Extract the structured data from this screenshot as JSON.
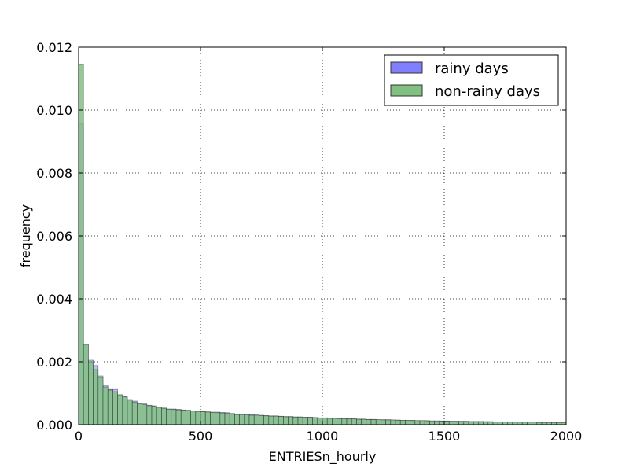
{
  "chart_data": {
    "type": "histogram",
    "title": "",
    "xlabel": "ENTRIESn_hourly",
    "ylabel": "frequency",
    "xlim": [
      0,
      2000
    ],
    "ylim": [
      0,
      0.012
    ],
    "xticks": [
      0,
      500,
      1000,
      1500,
      2000
    ],
    "xtick_labels": [
      "0",
      "500",
      "1000",
      "1500",
      "2000"
    ],
    "yticks": [
      0,
      0.002,
      0.004,
      0.006,
      0.008,
      0.01,
      0.012
    ],
    "ytick_labels": [
      "0.000",
      "0.002",
      "0.004",
      "0.006",
      "0.008",
      "0.010",
      "0.012"
    ],
    "grid": true,
    "legend_position": "top-right",
    "bin_width": 20,
    "series": [
      {
        "name": "rainy days",
        "color": "#8080ff",
        "values": [
          0.00957,
          0.00255,
          0.00205,
          0.00188,
          0.00155,
          0.00125,
          0.00112,
          0.00112,
          0.00095,
          0.0009,
          0.0008,
          0.00075,
          0.00068,
          0.00066,
          0.00062,
          0.0006,
          0.00056,
          0.00053,
          0.0005,
          0.0005,
          0.00049,
          0.00047,
          0.00046,
          0.00044,
          0.00043,
          0.00042,
          0.00041,
          0.0004,
          0.0004,
          0.00039,
          0.00038,
          0.00036,
          0.00034,
          0.00033,
          0.00033,
          0.00032,
          0.00031,
          0.0003,
          0.00029,
          0.00028,
          0.00028,
          0.00027,
          0.00026,
          0.00026,
          0.00025,
          0.00025,
          0.00024,
          0.00024,
          0.00023,
          0.00022,
          0.00022,
          0.00021,
          0.00021,
          0.0002,
          0.0002,
          0.00019,
          0.00019,
          0.00018,
          0.00018,
          0.00017,
          0.00017,
          0.00016,
          0.00016,
          0.00016,
          0.00015,
          0.00015,
          0.00014,
          0.00014,
          0.00014,
          0.00013,
          0.00013,
          0.00013,
          0.00012,
          0.00012,
          0.00012,
          0.00012,
          0.00011,
          0.00011,
          0.00011,
          0.00011,
          0.0001,
          0.0001,
          0.0001,
          0.0001,
          0.0001,
          9e-05,
          9e-05,
          9e-05,
          9e-05,
          9e-05,
          9e-05,
          8e-05,
          8e-05,
          8e-05,
          8e-05,
          8e-05,
          8e-05,
          8e-05,
          7e-05,
          7e-05
        ]
      },
      {
        "name": "non-rainy days",
        "color": "#80c080",
        "values": [
          0.01145,
          0.00255,
          0.002,
          0.00175,
          0.0015,
          0.0012,
          0.0011,
          0.00105,
          0.00095,
          0.00088,
          0.00078,
          0.00072,
          0.00066,
          0.00064,
          0.0006,
          0.00058,
          0.00055,
          0.00052,
          0.00049,
          0.00048,
          0.00047,
          0.00046,
          0.00045,
          0.00043,
          0.00042,
          0.00041,
          0.0004,
          0.00039,
          0.00038,
          0.00037,
          0.00036,
          0.00034,
          0.00032,
          0.00032,
          0.00031,
          0.0003,
          0.0003,
          0.00029,
          0.00028,
          0.00027,
          0.00027,
          0.00026,
          0.00025,
          0.00025,
          0.00024,
          0.00024,
          0.00023,
          0.00023,
          0.00022,
          0.00021,
          0.00021,
          0.0002,
          0.0002,
          0.00019,
          0.00019,
          0.00018,
          0.00018,
          0.00017,
          0.00017,
          0.00016,
          0.00016,
          0.00016,
          0.00015,
          0.00015,
          0.00015,
          0.00014,
          0.00014,
          0.00014,
          0.00013,
          0.00013,
          0.00013,
          0.00012,
          0.00012,
          0.00012,
          0.00011,
          0.00011,
          0.00011,
          0.00011,
          0.0001,
          0.0001,
          0.0001,
          0.0001,
          0.0001,
          9e-05,
          9e-05,
          9e-05,
          9e-05,
          9e-05,
          8e-05,
          8e-05,
          8e-05,
          8e-05,
          8e-05,
          8e-05,
          7e-05,
          7e-05,
          7e-05,
          7e-05,
          7e-05,
          7e-05
        ]
      }
    ]
  }
}
